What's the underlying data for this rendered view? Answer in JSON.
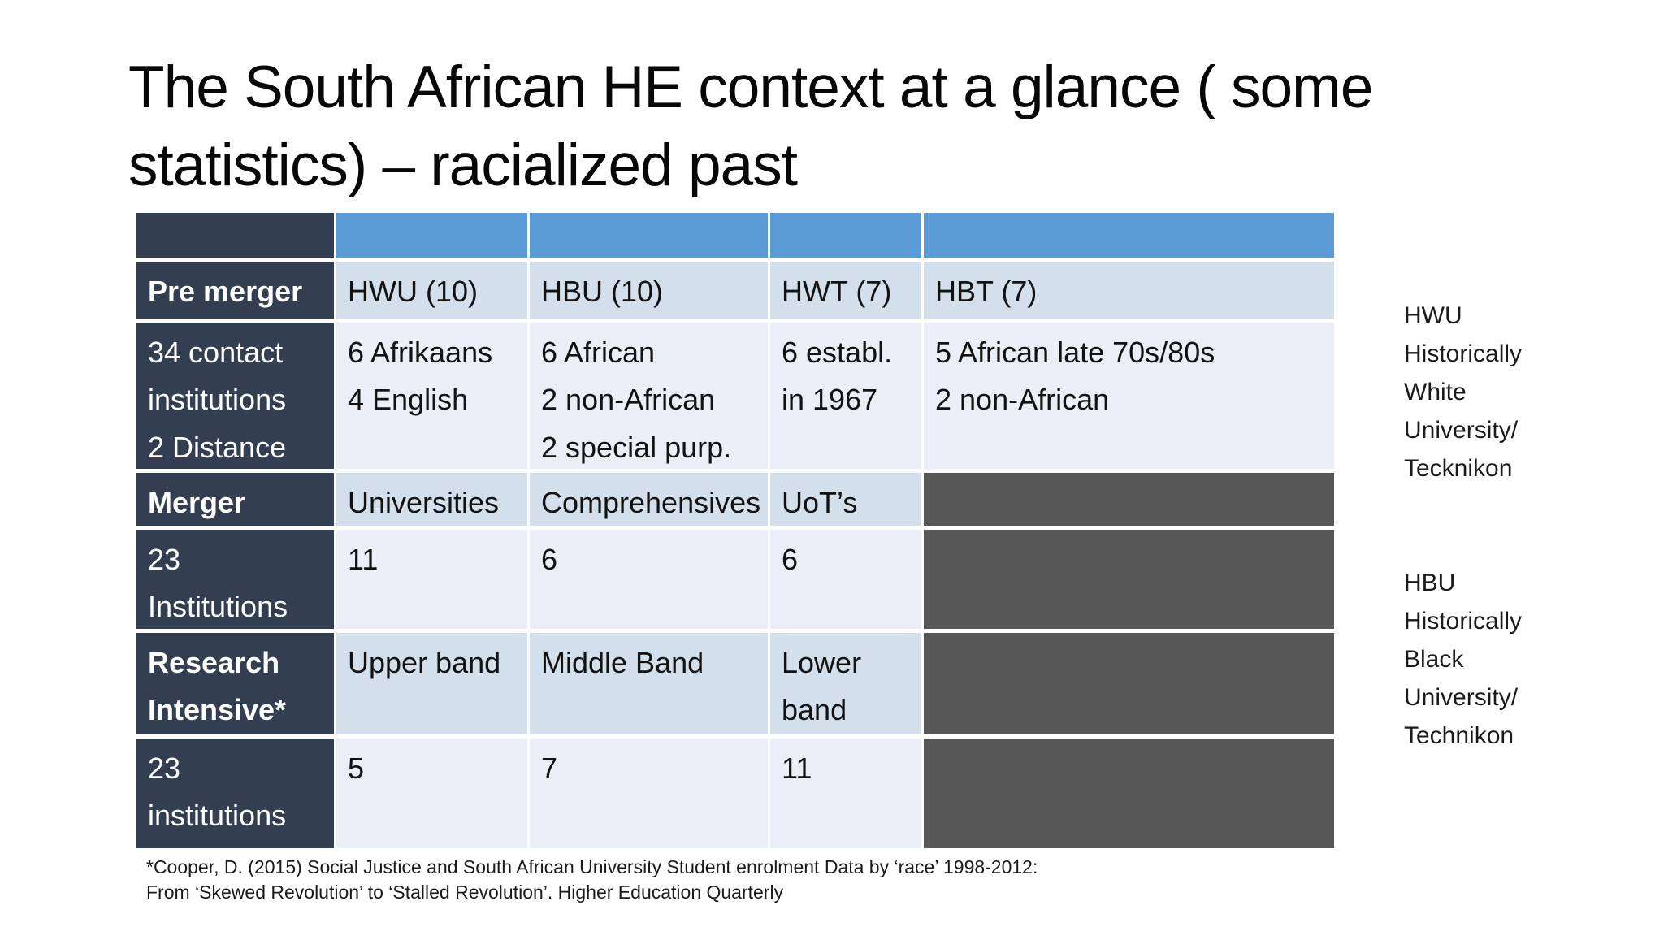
{
  "slide": {
    "title": "The South African HE context at a glance ( some\nstatistics) – racialized past",
    "footnote": "*Cooper, D.  (2015)  Social Justice and South African University Student enrolment Data by ‘race’ 1998-2012:\nFrom ‘Skewed Revolution’ to ‘Stalled Revolution’. Higher Education Quarterly"
  },
  "colors": {
    "header_blue": "#5B9BD5",
    "label_column_navy": "#333F50",
    "band_light_blue": "#D4DFEC",
    "band_lighter_blue": "#EAEFF7",
    "empty_cell_gray": "#575757",
    "background": "#FFFFFF"
  },
  "legend": {
    "hwu": "HWU\nHistorically\nWhite\nUniversity/\nTecknikon",
    "hbu": "HBU\nHistorically\nBlack\nUniversity/\nTechnikon"
  },
  "table": {
    "header_row": [
      "",
      "",
      "",
      "",
      ""
    ],
    "rows": [
      {
        "label": "Pre merger",
        "cells": [
          "HWU (10)",
          "HBU (10)",
          "HWT (7)",
          "HBT (7)"
        ]
      },
      {
        "label": "34 contact\ninstitutions\n2 Distance",
        "cells": [
          "6 Afrikaans\n4 English",
          "6 African\n2 non-African\n2 special purp.",
          "6 establ.\nin 1967",
          "5 African late 70s/80s\n2 non-African"
        ]
      },
      {
        "label": "Merger",
        "cells": [
          "Universities",
          "Comprehensives",
          "UoT’s",
          ""
        ]
      },
      {
        "label": "23\nInstitutions",
        "cells": [
          "11",
          "6",
          "6",
          ""
        ]
      },
      {
        "label": "Research\nIntensive*",
        "cells": [
          "Upper band",
          "Middle Band",
          "Lower\nband",
          ""
        ]
      },
      {
        "label": "23\ninstitutions",
        "cells": [
          "5",
          "7",
          "11",
          ""
        ]
      }
    ]
  }
}
